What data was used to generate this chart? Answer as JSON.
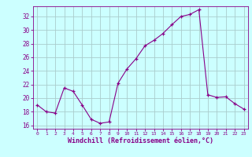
{
  "x": [
    0,
    1,
    2,
    3,
    4,
    5,
    6,
    7,
    8,
    9,
    10,
    11,
    12,
    13,
    14,
    15,
    16,
    17,
    18,
    19,
    20,
    21,
    22,
    23
  ],
  "y": [
    19.0,
    18.0,
    17.8,
    21.5,
    21.0,
    19.0,
    16.9,
    16.3,
    16.5,
    22.2,
    24.3,
    25.8,
    27.7,
    28.5,
    29.5,
    30.8,
    32.0,
    32.3,
    33.0,
    20.5,
    20.1,
    20.2,
    19.2,
    18.4
  ],
  "line_color": "#880088",
  "marker": "+",
  "marker_color": "#880088",
  "bg_color": "#ccffff",
  "grid_color": "#aacccc",
  "xlabel": "Windchill (Refroidissement éolien,°C)",
  "xlabel_color": "#880088",
  "tick_color": "#880088",
  "ylim": [
    15.5,
    33.5
  ],
  "yticks": [
    16,
    18,
    20,
    22,
    24,
    26,
    28,
    30,
    32
  ],
  "xlim": [
    -0.5,
    23.5
  ],
  "xticks": [
    0,
    1,
    2,
    3,
    4,
    5,
    6,
    7,
    8,
    9,
    10,
    11,
    12,
    13,
    14,
    15,
    16,
    17,
    18,
    19,
    20,
    21,
    22,
    23
  ]
}
